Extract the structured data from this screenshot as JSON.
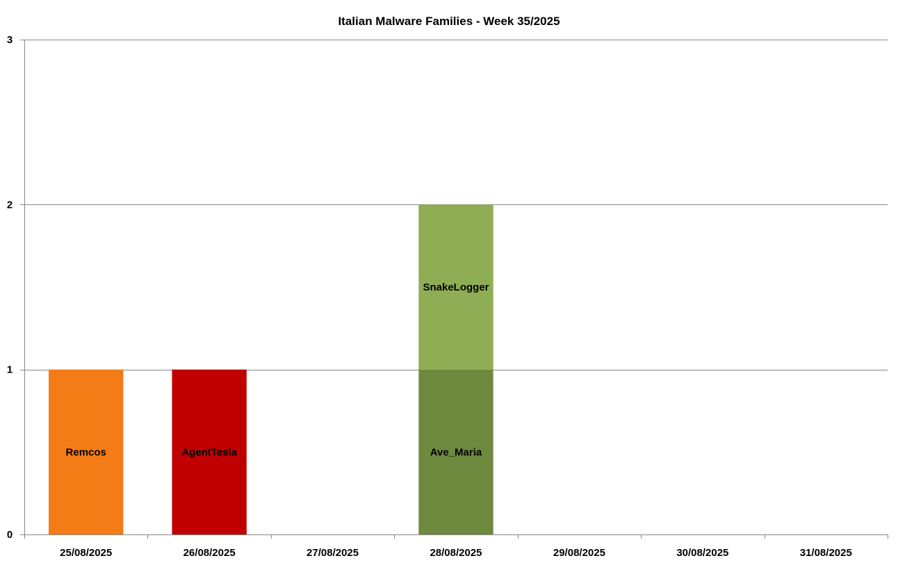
{
  "chart_data": {
    "type": "bar",
    "stacked": true,
    "title": "Italian Malware Families - Week 35/2025",
    "xlabel": "",
    "ylabel": "",
    "ylim": [
      0,
      3
    ],
    "yticks": [
      "0",
      "1",
      "2",
      "3"
    ],
    "grid": true,
    "legend": "none",
    "categories": [
      "25/08/2025",
      "26/08/2025",
      "27/08/2025",
      "28/08/2025",
      "29/08/2025",
      "30/08/2025",
      "31/08/2025"
    ],
    "series": [
      {
        "name": "Remcos",
        "color": "#f47c16",
        "values": [
          1,
          0,
          0,
          0,
          0,
          0,
          0
        ]
      },
      {
        "name": "AgentTesla",
        "color": "#c00000",
        "values": [
          0,
          1,
          0,
          0,
          0,
          0,
          0
        ]
      },
      {
        "name": "Ave_Maria",
        "color": "#6e8a3f",
        "values": [
          0,
          0,
          0,
          1,
          0,
          0,
          0
        ]
      },
      {
        "name": "SnakeLogger",
        "color": "#8fad55",
        "values": [
          0,
          0,
          0,
          1,
          0,
          0,
          0
        ]
      }
    ]
  }
}
